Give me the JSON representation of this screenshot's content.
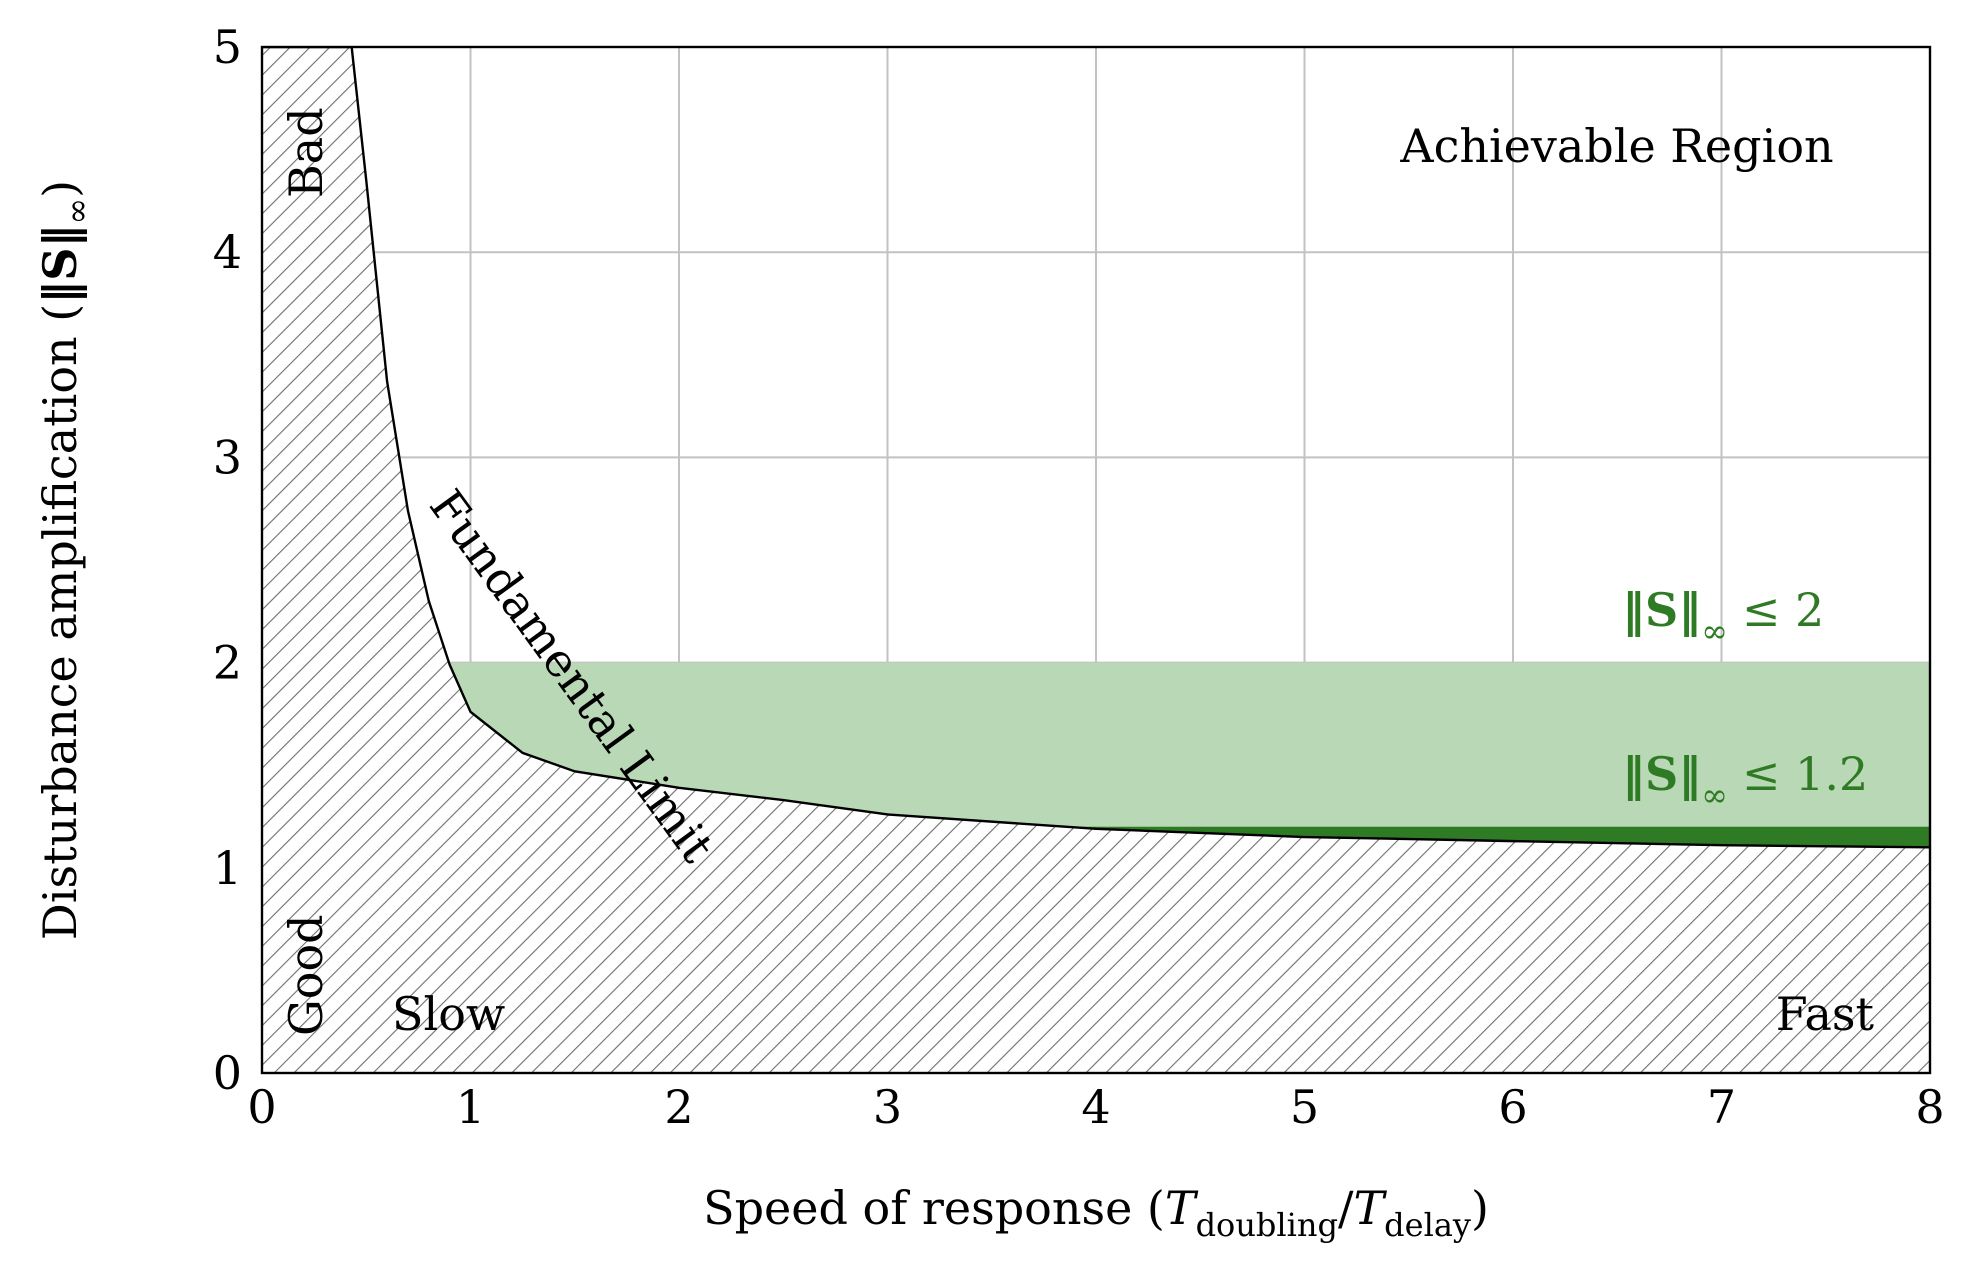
{
  "chart_data": {
    "type": "area",
    "x": [
      0.43,
      0.5,
      0.6,
      0.7,
      0.8,
      0.9,
      1.0,
      1.25,
      1.5,
      2.0,
      2.5,
      3.0,
      4.0,
      5.0,
      6.0,
      7.0,
      8.0
    ],
    "series": [
      {
        "values": [
          5.0,
          4.35,
          3.37,
          2.74,
          2.3,
          1.99,
          1.76,
          1.56,
          1.47,
          1.39,
          1.33,
          1.26,
          1.19,
          1.15,
          1.13,
          1.11,
          1.1
        ]
      }
    ],
    "bands": [
      {
        "label": "‖S‖",
        "sub": "∞",
        "rel": "≤ 2",
        "ymax": 2.0,
        "color": "#b9d8b5"
      },
      {
        "label": "‖S‖",
        "sub": "∞",
        "rel": "≤ 1.2",
        "ymax": 1.2,
        "color": "#2f7a24"
      }
    ],
    "xlabel": {
      "prefix": "Speed of response (",
      "t1": "T",
      "t1_sub": "doubling",
      "slash": "/",
      "t2": "T",
      "t2_sub": "delay",
      "suffix": ")"
    },
    "ylabel": {
      "prefix": "Disturbance amplification (",
      "norm": "‖S‖",
      "sub": "∞",
      "suffix": ")"
    },
    "xlim": [
      0,
      8
    ],
    "ylim": [
      0,
      5
    ],
    "xticks": [
      "0",
      "1",
      "2",
      "3",
      "4",
      "5",
      "6",
      "7",
      "8"
    ],
    "yticks": [
      "0",
      "1",
      "2",
      "3",
      "4",
      "5"
    ],
    "grid": true,
    "annotations": {
      "achievable": "Achievable Region",
      "fundamental": "Fundamental Limit",
      "bad": "Bad",
      "good": "Good",
      "slow": "Slow",
      "fast": "Fast"
    },
    "colors": {
      "light_green": "#b9d8b5",
      "dark_green": "#2f7a24",
      "hatch": "#6e6e6e",
      "curve": "#000000"
    }
  }
}
